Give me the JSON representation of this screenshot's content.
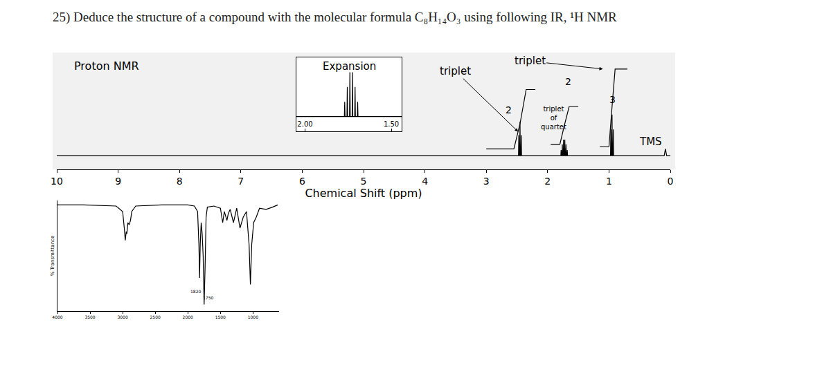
{
  "question": "25) Deduce the structure of a compound with the molecular formula C₈H₁₄O₃ using following IR, ¹H NMR",
  "chart_data": [
    {
      "type": "line",
      "title": "Proton NMR",
      "x_label": "Chemical Shift (ppm)",
      "xlim": [
        10,
        0
      ],
      "xticks": [
        10,
        9,
        8,
        7,
        6,
        5,
        4,
        3,
        2,
        1,
        0
      ],
      "ylim": [
        0,
        100
      ],
      "tick_labels": "x",
      "grid": false,
      "series": [
        {
          "color": "#000000",
          "x": [
            10,
            2.5,
            2.475,
            2.47,
            2.465,
            2.455,
            2.45,
            2.445,
            2.435,
            2.43,
            2.425,
            2.4,
            1.8,
            1.785,
            1.78,
            1.775,
            1.765,
            1.76,
            1.755,
            1.745,
            1.74,
            1.735,
            1.725,
            1.72,
            1.715,
            1.705,
            1.7,
            1.695,
            1.685,
            1.68,
            1.675,
            1.66,
            1.0,
            0.975,
            0.97,
            0.965,
            0.955,
            0.95,
            0.945,
            0.935,
            0.93,
            0.925,
            0.9,
            0.2,
            0.1,
            0.08,
            0.06,
            0.04,
            0
          ],
          "values": [
            12,
            12,
            12,
            30,
            12,
            12,
            42,
            12,
            12,
            30,
            12,
            12,
            12,
            12,
            17,
            12,
            12,
            22,
            12,
            12,
            26,
            12,
            12,
            26,
            12,
            12,
            22,
            12,
            12,
            17,
            12,
            12,
            12,
            12,
            35,
            12,
            12,
            48,
            12,
            12,
            35,
            12,
            12,
            12,
            12,
            18,
            12,
            12,
            12
          ]
        },
        {
          "color": "#000000",
          "x": [
            3.0,
            2.55,
            2.45,
            2.35,
            2.2,
            2.1,
            1.95,
            1.8,
            1.73,
            1.65,
            1.5,
            1.4,
            1.15,
            1.0,
            0.95,
            0.9,
            0.7
          ],
          "values": [
            18,
            18,
            40,
            70,
            70,
            null,
            22,
            22,
            38,
            55,
            55,
            null,
            20,
            20,
            55,
            88,
            88
          ]
        }
      ],
      "annotations": [
        {
          "text": "triplet",
          "x": 2.48,
          "y": 33,
          "arrow_x": 3.5,
          "arrow_y": 86
        },
        {
          "text": "triplet",
          "x": 1.1,
          "y": 88,
          "arrow_x": 2.29,
          "arrow_y": 95
        },
        {
          "text": "2",
          "x": 2.63,
          "y": 52
        },
        {
          "text": "2",
          "x": 1.67,
          "y": 77
        },
        {
          "lines": [
            "triplet",
            "of",
            "quartet"
          ],
          "x": 1.9,
          "y": 45
        },
        {
          "text": "3",
          "x": 0.94,
          "y": 61
        },
        {
          "text": "TMS",
          "x": 0.32,
          "y": 24
        }
      ]
    },
    {
      "type": "line",
      "title": "Expansion",
      "xlim": [
        2.05,
        1.44
      ],
      "xticks": [
        {
          "value": 2,
          "label": "2.00"
        },
        {
          "value": 1.5,
          "label": "1.50"
        }
      ],
      "ylim": [
        0,
        100
      ],
      "tick_labels": "x",
      "grid": false,
      "series": [
        {
          "color": "#000000",
          "x": [
            2.05,
            1.79,
            1.772,
            1.77,
            1.768,
            1.757,
            1.755,
            1.753,
            1.742,
            1.74,
            1.738,
            1.727,
            1.725,
            1.723,
            1.712,
            1.71,
            1.708,
            1.697,
            1.695,
            1.693,
            1.67,
            1.44
          ],
          "values": [
            20,
            20,
            20,
            40,
            20,
            20,
            60,
            20,
            20,
            80,
            20,
            20,
            80,
            20,
            20,
            60,
            20,
            20,
            40,
            20,
            20,
            20
          ]
        }
      ]
    },
    {
      "type": "line",
      "y_label": "% Transmittance",
      "xlim": [
        4000,
        600
      ],
      "xticks": [
        4000,
        3500,
        3000,
        2500,
        2000,
        1500,
        1000
      ],
      "ylim": [
        0,
        100
      ],
      "tick_labels": "x",
      "grid": false,
      "series": [
        {
          "color": "#000000",
          "x": [
            4000,
            3600,
            3100,
            3000,
            2975,
            2960,
            2945,
            2935,
            2920,
            2900,
            2880,
            2860,
            2800,
            2400,
            2000,
            1900,
            1850,
            1830,
            1820,
            1810,
            1795,
            1780,
            1765,
            1750,
            1735,
            1720,
            1700,
            1600,
            1500,
            1465,
            1440,
            1400,
            1380,
            1350,
            1300,
            1250,
            1200,
            1150,
            1100,
            1060,
            1040,
            1020,
            990,
            950,
            900,
            800,
            700,
            620
          ],
          "values": [
            96,
            96,
            95,
            90,
            75,
            64,
            72,
            70,
            80,
            78,
            82,
            90,
            95,
            96,
            96,
            95,
            90,
            60,
            30,
            60,
            80,
            70,
            50,
            6,
            40,
            85,
            94,
            95,
            93,
            80,
            90,
            82,
            88,
            92,
            80,
            93,
            75,
            85,
            90,
            60,
            24,
            60,
            80,
            85,
            93,
            92,
            94,
            96
          ]
        }
      ],
      "annotations": [
        {
          "text": "1820",
          "x": 1880,
          "y": 18
        },
        {
          "text": "1750",
          "x": 1690,
          "y": 12
        }
      ]
    }
  ]
}
